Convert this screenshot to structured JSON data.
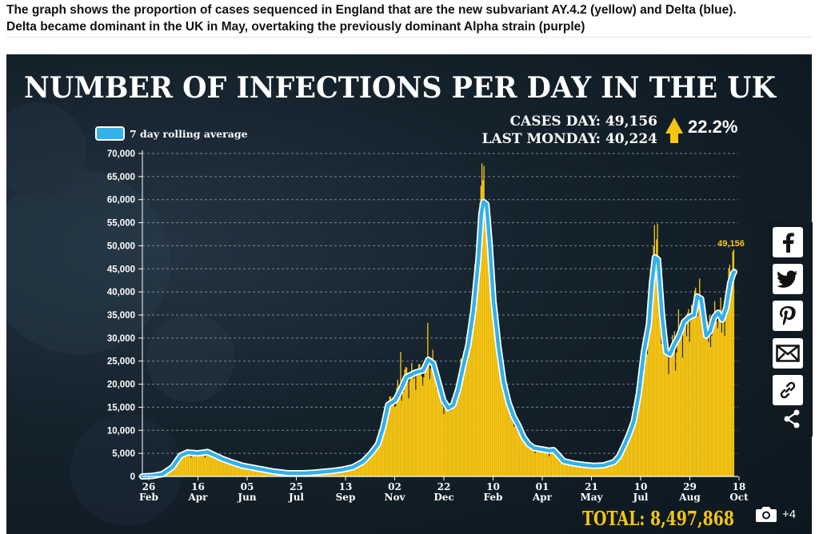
{
  "caption": {
    "line1": "The graph shows the proportion of cases sequenced in England that are the new subvariant AY.4.2 (yellow) and Delta (blue).",
    "line2": "Delta became dominant in the UK in May, overtaking the previously dominant Alpha strain (purple)"
  },
  "colors": {
    "bar": "#f7c513",
    "line": "#33b1ea",
    "lineOutline": "#ffffff",
    "text": "#ffffff",
    "highlight": "#f7c513",
    "background": "#14222c"
  },
  "stats": {
    "cases_day_label": "CASES DAY: 49,156",
    "last_monday_label": "LAST MONDAY: 40,224",
    "change": "22.2%",
    "total_label": "TOTAL: 8,497,868",
    "arrow_icon": "up-arrow-icon"
  },
  "share": {
    "icons": [
      "facebook-icon",
      "twitter-icon",
      "pinterest-icon",
      "email-icon",
      "link-icon",
      "share-icon"
    ]
  },
  "gallery": {
    "count": "+4",
    "icon": "camera-icon"
  },
  "chart_data": {
    "type": "bar",
    "title": "NUMBER OF INFECTIONS PER DAY IN THE UK",
    "legend": "7 day rolling average",
    "ylim": [
      0,
      70000
    ],
    "yticks": [
      "0",
      "5,000",
      "10,000",
      "15,000",
      "20,000",
      "25,000",
      "30,000",
      "35,000",
      "40,000",
      "45,000",
      "50,000",
      "55,000",
      "60,000",
      "65,000",
      "70,000"
    ],
    "xticks": [
      {
        "day": "26",
        "month": "Feb"
      },
      {
        "day": "16",
        "month": "Apr"
      },
      {
        "day": "05",
        "month": "Jun"
      },
      {
        "day": "25",
        "month": "Jul"
      },
      {
        "day": "13",
        "month": "Sep"
      },
      {
        "day": "02",
        "month": "Nov"
      },
      {
        "day": "22",
        "month": "Dec"
      },
      {
        "day": "10",
        "month": "Feb"
      },
      {
        "day": "01",
        "month": "Apr"
      },
      {
        "day": "21",
        "month": "May"
      },
      {
        "day": "10",
        "month": "Jul"
      },
      {
        "day": "29",
        "month": "Aug"
      },
      {
        "day": "18",
        "month": "Oct"
      }
    ],
    "peak_label": "49,156",
    "rolling_average": [
      [
        0,
        0
      ],
      [
        10,
        100
      ],
      [
        20,
        500
      ],
      [
        30,
        2000
      ],
      [
        38,
        4500
      ],
      [
        45,
        5200
      ],
      [
        55,
        5000
      ],
      [
        65,
        5300
      ],
      [
        72,
        4600
      ],
      [
        80,
        3800
      ],
      [
        90,
        3000
      ],
      [
        100,
        2300
      ],
      [
        115,
        1700
      ],
      [
        130,
        1100
      ],
      [
        145,
        700
      ],
      [
        160,
        700
      ],
      [
        170,
        800
      ],
      [
        180,
        1000
      ],
      [
        190,
        1200
      ],
      [
        200,
        1500
      ],
      [
        210,
        2000
      ],
      [
        220,
        3200
      ],
      [
        228,
        5000
      ],
      [
        235,
        7000
      ],
      [
        240,
        10500
      ],
      [
        245,
        15500
      ],
      [
        252,
        16500
      ],
      [
        258,
        19000
      ],
      [
        263,
        21500
      ],
      [
        272,
        22500
      ],
      [
        280,
        23000
      ],
      [
        285,
        25300
      ],
      [
        290,
        24500
      ],
      [
        295,
        20500
      ],
      [
        300,
        16500
      ],
      [
        305,
        14800
      ],
      [
        310,
        15500
      ],
      [
        315,
        19000
      ],
      [
        320,
        24000
      ],
      [
        325,
        28500
      ],
      [
        330,
        36000
      ],
      [
        335,
        47000
      ],
      [
        338,
        57000
      ],
      [
        340,
        59500
      ],
      [
        343,
        59000
      ],
      [
        346,
        51000
      ],
      [
        350,
        38000
      ],
      [
        355,
        28000
      ],
      [
        360,
        20500
      ],
      [
        365,
        16000
      ],
      [
        370,
        13000
      ],
      [
        375,
        11000
      ],
      [
        380,
        8500
      ],
      [
        385,
        7000
      ],
      [
        390,
        6200
      ],
      [
        395,
        6000
      ],
      [
        400,
        5800
      ],
      [
        405,
        5600
      ],
      [
        410,
        5700
      ],
      [
        415,
        4500
      ],
      [
        420,
        3300
      ],
      [
        430,
        2800
      ],
      [
        440,
        2500
      ],
      [
        450,
        2300
      ],
      [
        460,
        2400
      ],
      [
        470,
        3100
      ],
      [
        475,
        4300
      ],
      [
        480,
        6500
      ],
      [
        485,
        9000
      ],
      [
        490,
        12000
      ],
      [
        495,
        18000
      ],
      [
        500,
        27000
      ],
      [
        505,
        33000
      ],
      [
        508,
        42000
      ],
      [
        511,
        47500
      ],
      [
        514,
        47000
      ],
      [
        518,
        35000
      ],
      [
        522,
        27000
      ],
      [
        526,
        26500
      ],
      [
        530,
        28500
      ],
      [
        535,
        30500
      ],
      [
        540,
        33500
      ],
      [
        545,
        34500
      ],
      [
        550,
        35000
      ],
      [
        553,
        39000
      ],
      [
        557,
        38500
      ],
      [
        562,
        30500
      ],
      [
        566,
        31500
      ],
      [
        570,
        34500
      ],
      [
        574,
        35500
      ],
      [
        578,
        34000
      ],
      [
        582,
        36500
      ],
      [
        586,
        42000
      ],
      [
        589,
        44000
      ],
      [
        590,
        44300
      ]
    ]
  }
}
